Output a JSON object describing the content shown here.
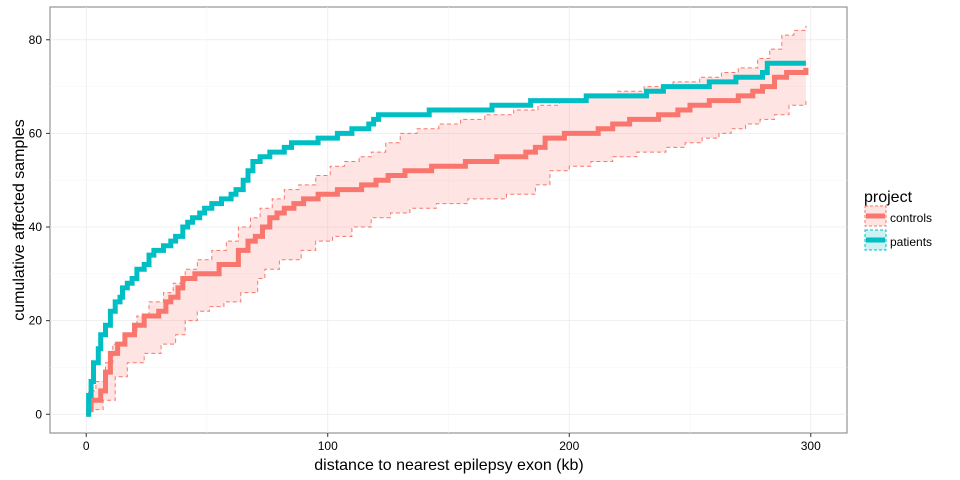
{
  "chart_data": {
    "type": "line",
    "title": "",
    "xlabel": "distance to nearest epilepsy exon (kb)",
    "ylabel": "cumulative affected samples",
    "xlim": [
      -15,
      315
    ],
    "ylim": [
      -4,
      87
    ],
    "xticks": [
      0,
      100,
      200,
      300
    ],
    "yticks": [
      0,
      20,
      40,
      60,
      80
    ],
    "x_tick_labels": [
      "0",
      "100",
      "200",
      "300"
    ],
    "y_tick_labels": [
      "0",
      "20",
      "40",
      "60",
      "80"
    ],
    "grid": true,
    "legend": {
      "title": "project",
      "position": "right"
    },
    "series": [
      {
        "name": "controls",
        "color": "#F8766D",
        "points": [
          [
            0,
            0
          ],
          [
            1,
            1
          ],
          [
            2,
            3
          ],
          [
            6,
            5
          ],
          [
            8,
            9
          ],
          [
            10,
            13
          ],
          [
            13,
            15
          ],
          [
            16,
            17
          ],
          [
            20,
            19
          ],
          [
            24,
            21
          ],
          [
            30,
            22
          ],
          [
            33,
            24
          ],
          [
            35,
            25
          ],
          [
            38,
            27
          ],
          [
            40,
            29
          ],
          [
            45,
            30
          ],
          [
            55,
            32
          ],
          [
            63,
            35
          ],
          [
            67,
            37
          ],
          [
            70,
            38
          ],
          [
            73,
            40
          ],
          [
            76,
            42
          ],
          [
            79,
            43
          ],
          [
            82,
            44
          ],
          [
            86,
            45
          ],
          [
            90,
            46
          ],
          [
            96,
            47
          ],
          [
            104,
            48
          ],
          [
            114,
            49
          ],
          [
            120,
            50
          ],
          [
            125,
            51
          ],
          [
            132,
            52
          ],
          [
            143,
            53
          ],
          [
            157,
            54
          ],
          [
            170,
            55
          ],
          [
            182,
            56
          ],
          [
            186,
            57
          ],
          [
            190,
            59
          ],
          [
            198,
            60
          ],
          [
            212,
            61
          ],
          [
            218,
            62
          ],
          [
            225,
            63
          ],
          [
            237,
            64
          ],
          [
            245,
            65
          ],
          [
            250,
            66
          ],
          [
            258,
            67
          ],
          [
            270,
            68
          ],
          [
            276,
            69
          ],
          [
            280,
            70
          ],
          [
            285,
            72
          ],
          [
            290,
            73
          ],
          [
            298,
            74
          ]
        ],
        "ribbon_lower": [
          [
            0,
            0
          ],
          [
            2,
            1
          ],
          [
            7,
            3
          ],
          [
            12,
            8
          ],
          [
            17,
            11
          ],
          [
            24,
            13
          ],
          [
            31,
            15
          ],
          [
            37,
            17
          ],
          [
            41,
            20
          ],
          [
            46,
            22
          ],
          [
            51,
            23
          ],
          [
            57,
            24
          ],
          [
            64,
            26
          ],
          [
            71,
            29
          ],
          [
            74,
            31
          ],
          [
            80,
            33
          ],
          [
            89,
            35
          ],
          [
            95,
            37
          ],
          [
            102,
            38
          ],
          [
            110,
            40
          ],
          [
            118,
            42
          ],
          [
            126,
            43
          ],
          [
            134,
            44
          ],
          [
            145,
            45
          ],
          [
            158,
            46
          ],
          [
            174,
            47
          ],
          [
            186,
            49
          ],
          [
            192,
            52
          ],
          [
            200,
            53
          ],
          [
            209,
            54
          ],
          [
            218,
            55
          ],
          [
            228,
            56
          ],
          [
            240,
            57
          ],
          [
            248,
            58
          ],
          [
            255,
            59
          ],
          [
            262,
            60
          ],
          [
            267,
            61
          ],
          [
            273,
            62
          ],
          [
            279,
            63
          ],
          [
            285,
            64
          ],
          [
            291,
            66
          ],
          [
            298,
            67
          ]
        ],
        "ribbon_upper": [
          [
            0,
            0
          ],
          [
            1,
            5
          ],
          [
            4,
            7
          ],
          [
            8,
            11
          ],
          [
            11,
            15
          ],
          [
            16,
            17
          ],
          [
            21,
            21
          ],
          [
            26,
            24
          ],
          [
            32,
            26
          ],
          [
            36,
            28
          ],
          [
            41,
            31
          ],
          [
            46,
            33
          ],
          [
            52,
            35
          ],
          [
            58,
            37
          ],
          [
            63,
            40
          ],
          [
            68,
            42
          ],
          [
            72,
            44
          ],
          [
            77,
            46
          ],
          [
            82,
            48
          ],
          [
            88,
            49
          ],
          [
            95,
            51
          ],
          [
            101,
            53
          ],
          [
            107,
            54
          ],
          [
            113,
            55
          ],
          [
            118,
            56
          ],
          [
            124,
            58
          ],
          [
            130,
            60
          ],
          [
            137,
            61
          ],
          [
            146,
            62
          ],
          [
            155,
            63
          ],
          [
            165,
            64
          ],
          [
            177,
            65
          ],
          [
            187,
            66
          ],
          [
            196,
            67
          ],
          [
            207,
            68
          ],
          [
            220,
            69
          ],
          [
            231,
            70
          ],
          [
            243,
            71
          ],
          [
            254,
            72
          ],
          [
            263,
            73
          ],
          [
            270,
            74
          ],
          [
            278,
            76
          ],
          [
            283,
            78
          ],
          [
            288,
            81
          ],
          [
            293,
            82
          ],
          [
            298,
            83
          ]
        ]
      },
      {
        "name": "patients",
        "color": "#00BFC4",
        "points": [
          [
            0,
            0
          ],
          [
            1,
            4
          ],
          [
            2,
            7
          ],
          [
            3,
            11
          ],
          [
            5,
            14
          ],
          [
            6,
            17
          ],
          [
            8,
            19
          ],
          [
            10,
            22
          ],
          [
            12,
            24
          ],
          [
            14,
            25
          ],
          [
            15,
            27
          ],
          [
            17,
            28
          ],
          [
            19,
            29
          ],
          [
            21,
            31
          ],
          [
            24,
            32
          ],
          [
            26,
            34
          ],
          [
            28,
            35
          ],
          [
            32,
            36
          ],
          [
            35,
            37
          ],
          [
            37,
            38
          ],
          [
            40,
            40
          ],
          [
            42,
            41
          ],
          [
            44,
            42
          ],
          [
            47,
            43
          ],
          [
            49,
            44
          ],
          [
            52,
            45
          ],
          [
            56,
            46
          ],
          [
            60,
            47
          ],
          [
            62,
            48
          ],
          [
            65,
            50
          ],
          [
            67,
            52
          ],
          [
            69,
            54
          ],
          [
            72,
            55
          ],
          [
            76,
            56
          ],
          [
            82,
            57
          ],
          [
            85,
            58
          ],
          [
            96,
            59
          ],
          [
            104,
            60
          ],
          [
            110,
            61
          ],
          [
            117,
            62
          ],
          [
            119,
            63
          ],
          [
            121,
            64
          ],
          [
            142,
            65
          ],
          [
            168,
            66
          ],
          [
            184,
            67
          ],
          [
            207,
            68
          ],
          [
            218,
            68
          ],
          [
            232,
            69
          ],
          [
            239,
            70
          ],
          [
            258,
            71
          ],
          [
            269,
            72
          ],
          [
            280,
            73
          ],
          [
            282,
            75
          ],
          [
            298,
            75
          ]
        ]
      }
    ]
  }
}
